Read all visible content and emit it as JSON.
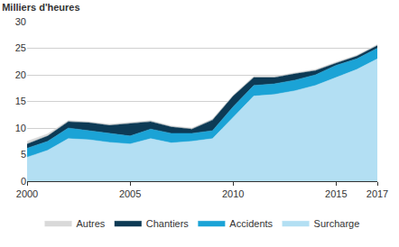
{
  "chart_data": {
    "type": "area",
    "title": "Milliers d'heures",
    "x": [
      2000,
      2001,
      2002,
      2003,
      2004,
      2005,
      2006,
      2007,
      2008,
      2009,
      2010,
      2011,
      2012,
      2013,
      2014,
      2015,
      2016,
      2017
    ],
    "series": [
      {
        "name": "Surcharge",
        "color": "#b3dff3",
        "values": [
          4.5,
          5.8,
          8.0,
          7.8,
          7.3,
          7.0,
          8.0,
          7.2,
          7.5,
          8.0,
          12.0,
          16.0,
          16.3,
          17.0,
          18.0,
          19.5,
          21.0,
          23.0
        ]
      },
      {
        "name": "Accidents",
        "color": "#1ba3d6",
        "values": [
          1.7,
          1.7,
          2.0,
          1.7,
          1.7,
          1.5,
          1.8,
          1.8,
          1.5,
          1.5,
          2.0,
          2.0,
          2.0,
          2.0,
          2.0,
          2.3,
          2.0,
          2.0
        ]
      },
      {
        "name": "Chantiers",
        "color": "#0d3a55",
        "values": [
          0.8,
          1.0,
          1.2,
          1.5,
          1.5,
          2.3,
          1.4,
          1.2,
          0.8,
          2.0,
          2.0,
          1.5,
          1.2,
          1.2,
          0.8,
          0.4,
          0.5,
          0.5
        ]
      },
      {
        "name": "Autres",
        "color": "#d9d9d9",
        "values": [
          0.5,
          0.4,
          0.2,
          0.2,
          0.2,
          0.2,
          0.2,
          0.2,
          0.2,
          0.2,
          0.2,
          0.2,
          0.2,
          0.2,
          0.2,
          0.2,
          0.2,
          0.2
        ]
      }
    ],
    "xlim": [
      2000,
      2017
    ],
    "xticks": [
      2000,
      2005,
      2010,
      2015,
      2017
    ],
    "ylim": [
      0,
      30
    ],
    "yticks": [
      0,
      5,
      10,
      15,
      20,
      25,
      30
    ],
    "stacked": true,
    "grid": true,
    "legend": "bottom"
  }
}
